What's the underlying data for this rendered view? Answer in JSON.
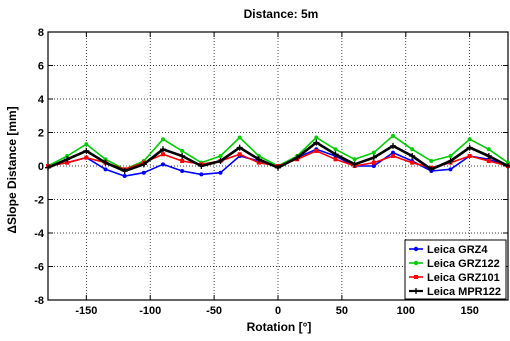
{
  "chart_data": {
    "type": "line",
    "title": "Distance: 5m",
    "xlabel": "Rotation [°]",
    "ylabel": "ΔSlope Distance [mm]",
    "xlim": [
      -180,
      180
    ],
    "ylim": [
      -8,
      8
    ],
    "xticks": [
      -150,
      -100,
      -50,
      0,
      50,
      100,
      150
    ],
    "yticks": [
      -8,
      -6,
      -4,
      -2,
      0,
      2,
      4,
      6,
      8
    ],
    "grid": true,
    "legend_position": "bottom-right",
    "x": [
      -180,
      -165,
      -150,
      -135,
      -120,
      -105,
      -90,
      -75,
      -60,
      -45,
      -30,
      -15,
      0,
      15,
      30,
      45,
      60,
      75,
      90,
      105,
      120,
      135,
      150,
      165,
      180
    ],
    "series": [
      {
        "name": "Leica GRZ4",
        "color": "#0000ff",
        "marker": "circle",
        "values": [
          0.0,
          0.2,
          0.5,
          -0.2,
          -0.6,
          -0.4,
          0.1,
          -0.3,
          -0.5,
          -0.4,
          0.6,
          0.3,
          0.0,
          0.5,
          1.0,
          0.6,
          0.0,
          0.0,
          0.8,
          0.3,
          -0.3,
          -0.2,
          0.6,
          0.4,
          0.0
        ]
      },
      {
        "name": "Leica GRZ122",
        "color": "#00cc00",
        "marker": "circle",
        "values": [
          0.0,
          0.6,
          1.3,
          0.4,
          -0.2,
          0.3,
          1.6,
          0.9,
          0.2,
          0.6,
          1.7,
          0.6,
          0.0,
          0.6,
          1.7,
          1.0,
          0.4,
          0.8,
          1.8,
          1.0,
          0.3,
          0.6,
          1.6,
          1.0,
          0.2
        ]
      },
      {
        "name": "Leica GRZ101",
        "color": "#ff0000",
        "marker": "square",
        "values": [
          0.0,
          0.2,
          0.5,
          0.2,
          -0.2,
          0.2,
          0.7,
          0.3,
          0.1,
          0.3,
          0.7,
          0.2,
          0.0,
          0.4,
          0.9,
          0.4,
          0.0,
          0.2,
          0.6,
          0.2,
          -0.1,
          0.2,
          0.6,
          0.3,
          0.0
        ]
      },
      {
        "name": "Leica MPR122",
        "color": "#000000",
        "marker": "plus",
        "values": [
          -0.1,
          0.4,
          0.9,
          0.2,
          -0.3,
          0.1,
          1.0,
          0.6,
          0.0,
          0.3,
          1.1,
          0.4,
          -0.1,
          0.5,
          1.4,
          0.7,
          0.1,
          0.5,
          1.2,
          0.6,
          -0.2,
          0.3,
          1.1,
          0.6,
          0.0
        ]
      }
    ]
  }
}
